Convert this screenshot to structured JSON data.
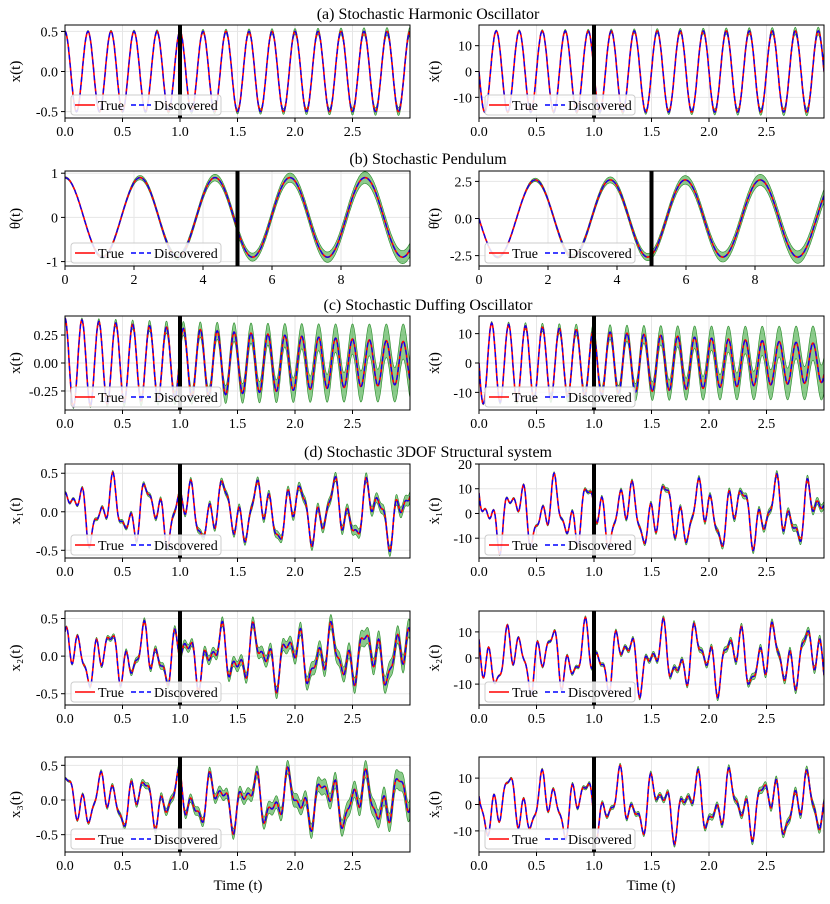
{
  "figure": {
    "section_titles": [
      "(a) Stochastic Harmonic Oscillator",
      "(b) Stochastic Pendulum",
      "(c) Stochastic Duffing Oscillator",
      "(d) Stochastic 3DOF Structural system"
    ],
    "xlabel": "Time (t)",
    "legend": [
      "True",
      "Discovered"
    ],
    "colors": {
      "true": "#ff0000",
      "discovered": "#0000ff",
      "band": "#2ca02c",
      "divider": "#000000",
      "grid": "#e6e6e6"
    }
  },
  "chart_data": [
    {
      "id": "a-left",
      "type": "line",
      "ylabel": "x(t)",
      "xlim": [
        0,
        3
      ],
      "ylim": [
        -0.58,
        0.58
      ],
      "xticks": [
        "0.0",
        "0.5",
        "1.0",
        "1.5",
        "2.0",
        "2.5"
      ],
      "yticks": [
        "-0.5",
        "0.0",
        "0.5"
      ],
      "divider_x": 1.0,
      "legend": "lower left",
      "signal": {
        "kind": "sine",
        "amp": 0.5,
        "freq": 5.0,
        "phase": 1.5708,
        "decay": 0,
        "band": [
          0.01,
          0.05
        ]
      }
    },
    {
      "id": "a-right",
      "type": "line",
      "ylabel": "ẋ(t)",
      "xlim": [
        0,
        3
      ],
      "ylim": [
        -18,
        18
      ],
      "xticks": [
        "0.0",
        "0.5",
        "1.0",
        "1.5",
        "2.0",
        "2.5"
      ],
      "yticks": [
        "-10",
        "0",
        "10"
      ],
      "divider_x": 1.0,
      "legend": "lower left",
      "signal": {
        "kind": "sine",
        "amp": 15.7,
        "freq": 5.0,
        "phase": 3.1416,
        "decay": 0,
        "band": [
          0.3,
          1.5
        ]
      }
    },
    {
      "id": "b-left",
      "type": "line",
      "ylabel": "θ(t)",
      "xlim": [
        0,
        10
      ],
      "ylim": [
        -1.1,
        1.05
      ],
      "xticks": [
        "0",
        "2",
        "4",
        "6",
        "8"
      ],
      "yticks": [
        "-1",
        "0",
        "1"
      ],
      "divider_x": 5.0,
      "legend": "lower left",
      "signal": {
        "kind": "sine",
        "amp": 0.9,
        "freq": 0.46,
        "phase": 1.5708,
        "decay": 0,
        "band": [
          0.02,
          0.15
        ]
      }
    },
    {
      "id": "b-right",
      "type": "line",
      "ylabel": "θ̇(t)",
      "xlim": [
        0,
        10
      ],
      "ylim": [
        -3.2,
        3.2
      ],
      "xticks": [
        "0",
        "2",
        "4",
        "6",
        "8"
      ],
      "yticks": [
        "-2.5",
        "0.0",
        "2.5"
      ],
      "divider_x": 5.0,
      "legend": "lower left",
      "signal": {
        "kind": "sine",
        "amp": 2.6,
        "freq": 0.46,
        "phase": 3.1416,
        "decay": 0,
        "band": [
          0.05,
          0.45
        ]
      }
    },
    {
      "id": "c-left",
      "type": "line",
      "ylabel": "x(t)",
      "xlim": [
        0,
        3
      ],
      "ylim": [
        -0.42,
        0.42
      ],
      "xticks": [
        "0.0",
        "0.5",
        "1.0",
        "1.5",
        "2.0",
        "2.5"
      ],
      "yticks": [
        "-0.25",
        "0.00",
        "0.25"
      ],
      "divider_x": 1.0,
      "legend": "lower left",
      "signal": {
        "kind": "sine",
        "amp": 0.4,
        "freq": 6.8,
        "phase": 1.5708,
        "decay": 0.25,
        "band": [
          0.01,
          0.16
        ]
      }
    },
    {
      "id": "c-right",
      "type": "line",
      "ylabel": "ẋ(t)",
      "xlim": [
        0,
        3
      ],
      "ylim": [
        -16,
        16
      ],
      "xticks": [
        "0.0",
        "0.5",
        "1.0",
        "1.5",
        "2.0",
        "2.5"
      ],
      "yticks": [
        "-10",
        "0",
        "10"
      ],
      "divider_x": 1.0,
      "legend": "lower left",
      "signal": {
        "kind": "sine",
        "amp": 14,
        "freq": 6.8,
        "phase": 3.1416,
        "decay": 0.25,
        "band": [
          0.3,
          6
        ]
      }
    },
    {
      "id": "d1-left",
      "type": "line",
      "ylabel": "x₁(t)",
      "xlim": [
        0,
        3
      ],
      "ylim": [
        -0.6,
        0.62
      ],
      "xticks": [
        "0.0",
        "0.5",
        "1.0",
        "1.5",
        "2.0",
        "2.5"
      ],
      "yticks": [
        "-0.5",
        "0.0",
        "0.5"
      ],
      "divider_x": 1.0,
      "legend": "lower left",
      "signal": {
        "kind": "multi",
        "amp": 0.24,
        "comps": [
          [
            1.0,
            3.1,
            0.0
          ],
          [
            0.75,
            7.3,
            1.1
          ],
          [
            0.45,
            11.8,
            2.3
          ]
        ],
        "band": [
          0.015,
          0.07
        ]
      }
    },
    {
      "id": "d1-right",
      "type": "line",
      "ylabel": "ẋ₁(t)",
      "xlim": [
        0,
        3
      ],
      "ylim": [
        -18,
        20
      ],
      "xticks": [
        "0.0",
        "0.5",
        "1.0",
        "1.5",
        "2.0",
        "2.5"
      ],
      "yticks": [
        "-10",
        "0",
        "10",
        "20"
      ],
      "divider_x": 1.0,
      "legend": "lower left",
      "signal": {
        "kind": "multi",
        "amp": 7.5,
        "comps": [
          [
            1.0,
            3.1,
            1.57
          ],
          [
            0.8,
            7.3,
            2.6
          ],
          [
            0.5,
            11.8,
            3.8
          ]
        ],
        "band": [
          0.3,
          1.5
        ]
      }
    },
    {
      "id": "d2-left",
      "type": "line",
      "ylabel": "x₂(t)",
      "xlim": [
        0,
        3
      ],
      "ylim": [
        -0.65,
        0.6
      ],
      "xticks": [
        "0.0",
        "0.5",
        "1.0",
        "1.5",
        "2.0",
        "2.5"
      ],
      "yticks": [
        "-0.5",
        "0.0",
        "0.5"
      ],
      "divider_x": 1.0,
      "legend": "lower left",
      "signal": {
        "kind": "multi",
        "amp": 0.2,
        "comps": [
          [
            1.0,
            3.1,
            0.6
          ],
          [
            0.9,
            7.3,
            1.8
          ],
          [
            0.6,
            11.8,
            0.3
          ]
        ],
        "band": [
          0.015,
          0.12
        ]
      }
    },
    {
      "id": "d2-right",
      "type": "line",
      "ylabel": "ẋ₂(t)",
      "xlim": [
        0,
        3
      ],
      "ylim": [
        -18,
        18
      ],
      "xticks": [
        "0.0",
        "0.5",
        "1.0",
        "1.5",
        "2.0",
        "2.5"
      ],
      "yticks": [
        "-10",
        "0",
        "10"
      ],
      "divider_x": 1.0,
      "legend": "lower left",
      "signal": {
        "kind": "multi",
        "amp": 6.5,
        "comps": [
          [
            1.0,
            3.1,
            2.2
          ],
          [
            0.9,
            7.3,
            3.4
          ],
          [
            0.55,
            11.8,
            1.9
          ]
        ],
        "band": [
          0.3,
          1.5
        ]
      }
    },
    {
      "id": "d3-left",
      "type": "line",
      "ylabel": "x₃(t)",
      "xlim": [
        0,
        3
      ],
      "ylim": [
        -0.75,
        0.62
      ],
      "xticks": [
        "0.0",
        "0.5",
        "1.0",
        "1.5",
        "2.0",
        "2.5"
      ],
      "yticks": [
        "-0.5",
        "0.0",
        "0.5"
      ],
      "divider_x": 1.0,
      "legend": "lower left",
      "signal": {
        "kind": "multi",
        "amp": 0.21,
        "comps": [
          [
            1.0,
            3.1,
            1.3
          ],
          [
            0.85,
            7.3,
            0.5
          ],
          [
            0.5,
            11.8,
            2.9
          ]
        ],
        "band": [
          0.015,
          0.14
        ]
      }
    },
    {
      "id": "d3-right",
      "type": "line",
      "ylabel": "ẋ₃(t)",
      "xlim": [
        0,
        3
      ],
      "ylim": [
        -18,
        18
      ],
      "xticks": [
        "0.0",
        "0.5",
        "1.0",
        "1.5",
        "2.0",
        "2.5"
      ],
      "yticks": [
        "-10",
        "0",
        "10"
      ],
      "divider_x": 1.0,
      "legend": "lower left",
      "signal": {
        "kind": "multi",
        "amp": 6.5,
        "comps": [
          [
            1.0,
            3.1,
            2.9
          ],
          [
            0.85,
            7.3,
            2.1
          ],
          [
            0.5,
            11.8,
            4.5
          ]
        ],
        "band": [
          0.3,
          1.5
        ]
      }
    }
  ]
}
